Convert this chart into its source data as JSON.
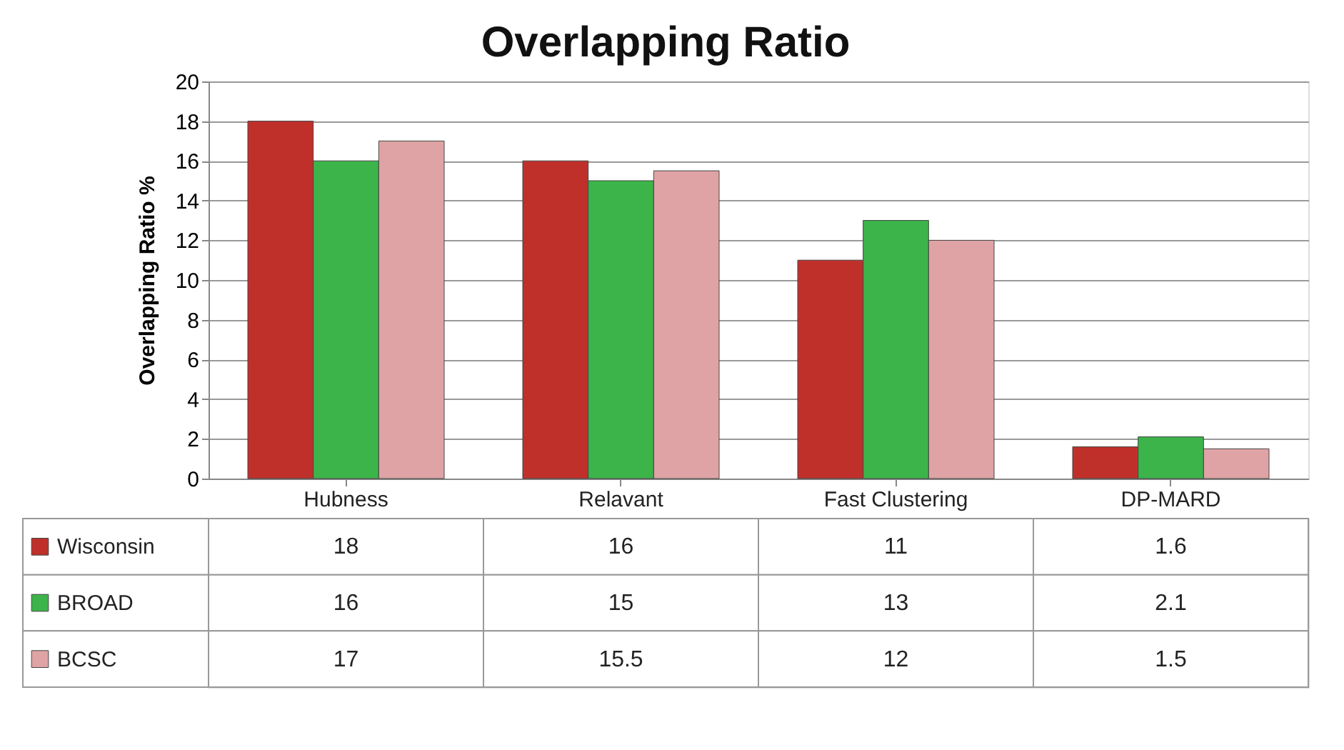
{
  "chart_data": {
    "type": "bar",
    "title": "Overlapping Ratio",
    "ylabel": "Overlapping Ratio %",
    "categories": [
      "Hubness",
      "Relavant",
      "Fast Clustering",
      "DP-MARD"
    ],
    "series": [
      {
        "name": "Wisconsin",
        "color": "#c0302b",
        "values": [
          18,
          16,
          11,
          1.6
        ]
      },
      {
        "name": "BROAD",
        "color": "#3cb44a",
        "values": [
          16,
          15,
          13,
          2.1
        ]
      },
      {
        "name": "BCSC",
        "color": "#dfa3a5",
        "values": [
          17,
          15.5,
          12,
          1.5
        ]
      }
    ],
    "ylim": [
      0,
      20
    ],
    "yticks": [
      0,
      2,
      4,
      6,
      8,
      10,
      12,
      14,
      16,
      18,
      20
    ],
    "grid": "y",
    "data_labels": true,
    "legend": "bottom left"
  }
}
